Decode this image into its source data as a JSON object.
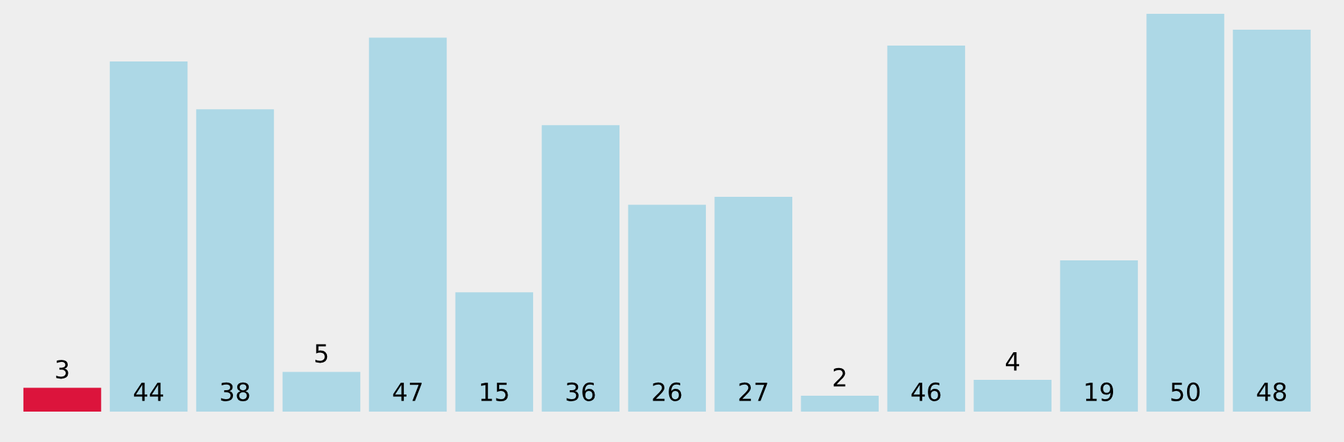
{
  "chart_data": {
    "type": "bar",
    "categories": [
      null,
      null,
      null,
      null,
      null,
      null,
      null,
      null,
      null,
      null,
      null,
      null,
      null,
      null,
      null
    ],
    "values": [
      3,
      44,
      38,
      5,
      47,
      15,
      36,
      26,
      27,
      2,
      46,
      4,
      19,
      50,
      48
    ],
    "colors": [
      "#dc143c",
      "#add8e6",
      "#add8e6",
      "#add8e6",
      "#add8e6",
      "#add8e6",
      "#add8e6",
      "#add8e6",
      "#add8e6",
      "#add8e6",
      "#add8e6",
      "#add8e6",
      "#add8e6",
      "#add8e6",
      "#add8e6"
    ],
    "data_labels": true
  }
}
